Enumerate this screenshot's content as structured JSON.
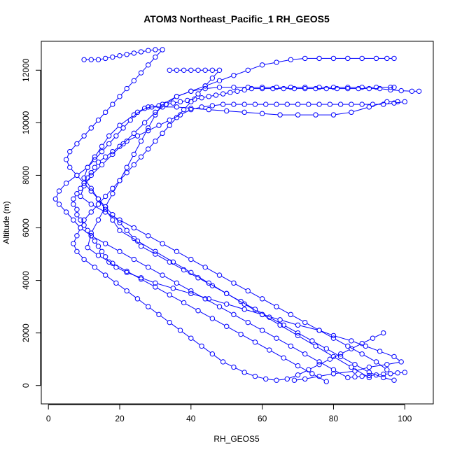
{
  "chart_data": {
    "type": "line",
    "title": "ATOM3 Northeast_Pacific_1 RH_GEOS5",
    "xlabel": "RH_GEOS5",
    "ylabel": "Altitude (m)",
    "xlim": [
      -2,
      108
    ],
    "ylim": [
      -700,
      13100
    ],
    "x_ticks": [
      0,
      20,
      40,
      60,
      80,
      100
    ],
    "y_ticks": [
      0,
      2000,
      4000,
      6000,
      8000,
      10000,
      12000
    ],
    "grid": false,
    "legend": "none",
    "line_color": "#0000ff",
    "marker": "open-circle",
    "series": [
      {
        "x": [
          69,
          72,
          76,
          80,
          86,
          90,
          95,
          99,
          97,
          93,
          89,
          85,
          80,
          76,
          70,
          65,
          60,
          55,
          50,
          45,
          40,
          35,
          30,
          26,
          22,
          19,
          17,
          16,
          15,
          14,
          13,
          12,
          11,
          10,
          9,
          8,
          8,
          7,
          7,
          8,
          9,
          10,
          11,
          12,
          13,
          14,
          16,
          18,
          20,
          22,
          25,
          28,
          31,
          34,
          37,
          40,
          43,
          46,
          49,
          52,
          55,
          58,
          61,
          64,
          67,
          70,
          73,
          76,
          79,
          82,
          85,
          88,
          91,
          94,
          97,
          100
        ],
        "y": [
          200,
          250,
          350,
          450,
          550,
          700,
          800,
          900,
          1100,
          1300,
          1500,
          1700,
          1900,
          2100,
          2300,
          2500,
          2700,
          2900,
          3100,
          3300,
          3500,
          3700,
          3900,
          4100,
          4300,
          4500,
          4700,
          4900,
          5100,
          5300,
          5500,
          5700,
          5900,
          6100,
          6300,
          6500,
          6700,
          6900,
          7100,
          7300,
          7500,
          7700,
          7900,
          8100,
          8300,
          8500,
          8700,
          8900,
          9100,
          9300,
          9500,
          9700,
          9900,
          10100,
          10300,
          10500,
          10600,
          10650,
          10700,
          10700,
          10700,
          10700,
          10700,
          10700,
          10700,
          10700,
          10700,
          10700,
          10700,
          10700,
          10700,
          10700,
          10700,
          10700,
          10750,
          10800
        ]
      },
      {
        "x": [
          100,
          98,
          96,
          94,
          92,
          90,
          88,
          86,
          84,
          80,
          76,
          72,
          68,
          64,
          60,
          56,
          52,
          48,
          44,
          40,
          36,
          32,
          28,
          24,
          20,
          16,
          12,
          9,
          7,
          5,
          3,
          2,
          3,
          5,
          8,
          11,
          13,
          15,
          17,
          19,
          21,
          23,
          25,
          27,
          29,
          31,
          33,
          35,
          37,
          39,
          41,
          43,
          45,
          47,
          49,
          51,
          53,
          55,
          57,
          60,
          63,
          66,
          69,
          72,
          75,
          78,
          81,
          84,
          87,
          90,
          93,
          96,
          99,
          102,
          104
        ],
        "y": [
          500,
          480,
          450,
          430,
          400,
          380,
          350,
          330,
          300,
          600,
          900,
          1200,
          1500,
          1800,
          2100,
          2400,
          2700,
          3000,
          3300,
          3600,
          3900,
          4200,
          4500,
          4800,
          5100,
          5400,
          5700,
          6000,
          6300,
          6600,
          6900,
          7100,
          7400,
          7700,
          8000,
          8300,
          8600,
          8900,
          9200,
          9500,
          9800,
          10100,
          10400,
          10550,
          10600,
          10650,
          10700,
          10750,
          10800,
          10850,
          10900,
          10950,
          11000,
          11050,
          11100,
          11150,
          11200,
          11250,
          11300,
          11300,
          11300,
          11300,
          11300,
          11300,
          11300,
          11300,
          11300,
          11300,
          11300,
          11300,
          11300,
          11250,
          11220,
          11200,
          11200
        ]
      },
      {
        "x": [
          90,
          85,
          80,
          75,
          70,
          65,
          60,
          55,
          50,
          45,
          40,
          35,
          30,
          25,
          20,
          18,
          16,
          14,
          12,
          10,
          11,
          13,
          15,
          17,
          20,
          24,
          28,
          32,
          36,
          40,
          45,
          50,
          55,
          60,
          65,
          70,
          75,
          80,
          85,
          90,
          95,
          98
        ],
        "y": [
          300,
          700,
          1100,
          1500,
          1900,
          2300,
          2700,
          3100,
          3500,
          3900,
          4300,
          4700,
          5100,
          5500,
          5900,
          6300,
          6700,
          7100,
          7500,
          7900,
          8300,
          8700,
          9100,
          9500,
          9900,
          10300,
          10600,
          10600,
          10600,
          10550,
          10500,
          10450,
          10400,
          10350,
          10300,
          10300,
          10300,
          10300,
          10400,
          10600,
          10800,
          10800
        ]
      },
      {
        "x": [
          78,
          74,
          70,
          66,
          62,
          58,
          54,
          50,
          46,
          42,
          38,
          34,
          30,
          26,
          22,
          18,
          14,
          11,
          12,
          14,
          16,
          18,
          20,
          22,
          24,
          26,
          28,
          30,
          32,
          36,
          40,
          44,
          48,
          52,
          56,
          60,
          64,
          68,
          72,
          76,
          80,
          84,
          88,
          92,
          96,
          97
        ],
        "y": [
          150,
          450,
          750,
          1050,
          1350,
          1650,
          1950,
          2250,
          2550,
          2850,
          3150,
          3450,
          3750,
          4050,
          4350,
          4650,
          4950,
          5250,
          5800,
          6300,
          6800,
          7300,
          7800,
          8300,
          8800,
          9300,
          9800,
          10300,
          10700,
          11000,
          11200,
          11300,
          11350,
          11350,
          11350,
          11350,
          11350,
          11350,
          11350,
          11350,
          11350,
          11350,
          11350,
          11350,
          11350,
          11350
        ]
      },
      {
        "x": [
          95,
          92,
          88,
          84,
          80,
          76,
          72,
          68,
          64,
          60,
          56,
          52,
          48,
          44,
          40,
          36,
          32,
          28,
          24,
          20,
          16,
          12,
          9,
          10,
          12,
          15,
          18,
          21,
          24,
          27,
          30,
          33,
          36,
          40,
          44,
          48,
          52,
          56,
          60,
          64,
          68,
          72,
          76,
          80,
          84,
          88,
          92,
          95,
          97
        ],
        "y": [
          600,
          900,
          1200,
          1500,
          1800,
          2100,
          2400,
          2700,
          3000,
          3300,
          3600,
          3900,
          4200,
          4500,
          4800,
          5100,
          5400,
          5700,
          6000,
          6300,
          6600,
          6900,
          7200,
          7600,
          8000,
          8400,
          8800,
          9200,
          9600,
          10000,
          10400,
          10700,
          11000,
          11200,
          11400,
          11600,
          11800,
          12000,
          12200,
          12300,
          12400,
          12450,
          12450,
          12450,
          12450,
          12450,
          12450,
          12450,
          12450
        ]
      },
      {
        "x": [
          10,
          12,
          14,
          16,
          18,
          20,
          22,
          24,
          26,
          28,
          30,
          32,
          30,
          28,
          26,
          24,
          22,
          20,
          18,
          16,
          14,
          12,
          10,
          8,
          6,
          5,
          6,
          8,
          10,
          12,
          14,
          16,
          18,
          20,
          22,
          24,
          26,
          30,
          34,
          38,
          42,
          46,
          50,
          54,
          58,
          62,
          66,
          70,
          74,
          78,
          82,
          86,
          90,
          94,
          97
        ],
        "y": [
          12400,
          12400,
          12400,
          12450,
          12500,
          12550,
          12600,
          12650,
          12700,
          12750,
          12780,
          12780,
          12500,
          12200,
          11900,
          11600,
          11300,
          11000,
          10700,
          10400,
          10100,
          9800,
          9500,
          9200,
          8900,
          8600,
          8300,
          8000,
          7700,
          7400,
          7100,
          6800,
          6500,
          6200,
          5900,
          5600,
          5300,
          5000,
          4700,
          4400,
          4100,
          3800,
          3500,
          3200,
          2900,
          2600,
          2300,
          2000,
          1700,
          1400,
          1100,
          800,
          500,
          300,
          200
        ]
      },
      {
        "x": [
          34,
          36,
          38,
          40,
          42,
          44,
          46,
          48,
          46,
          44,
          42,
          40,
          38,
          36,
          34,
          32,
          30,
          28,
          26,
          24,
          22,
          20,
          18,
          16,
          14,
          12,
          10,
          9,
          8,
          7,
          8,
          10,
          13,
          16,
          19,
          22,
          25,
          28,
          31,
          34,
          37,
          40,
          43,
          46,
          49,
          52,
          55,
          58,
          61,
          64,
          67,
          70,
          73,
          76,
          79,
          82,
          85,
          88,
          91,
          94
        ],
        "y": [
          12000,
          12000,
          12000,
          12000,
          12000,
          12000,
          12000,
          12000,
          11700,
          11400,
          11100,
          10800,
          10500,
          10200,
          9900,
          9600,
          9300,
          9000,
          8700,
          8400,
          8100,
          7800,
          7500,
          7200,
          6900,
          6600,
          6300,
          6000,
          5700,
          5400,
          5100,
          4800,
          4500,
          4200,
          3900,
          3600,
          3300,
          3000,
          2700,
          2400,
          2100,
          1800,
          1500,
          1200,
          900,
          700,
          500,
          350,
          250,
          200,
          250,
          400,
          600,
          800,
          1000,
          1200,
          1400,
          1600,
          1800,
          2000
        ]
      }
    ]
  }
}
